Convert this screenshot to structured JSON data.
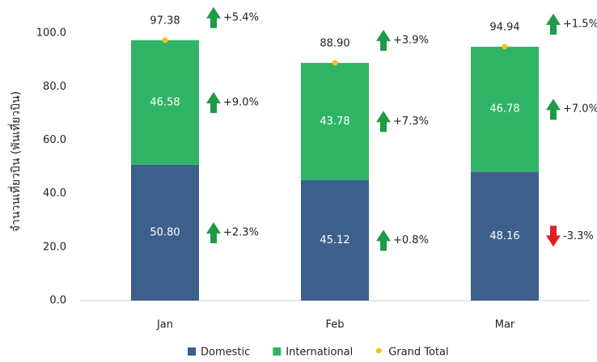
{
  "chart_data": {
    "type": "stacked-bar",
    "y_label": "จำนวนเที่ยวบิน (พันเที่ยวบิน)",
    "categories": [
      "Jan",
      "Feb",
      "Mar"
    ],
    "series": [
      {
        "name": "Domestic",
        "color": "#3d5f8b",
        "values": [
          50.8,
          45.12,
          48.16
        ],
        "value_labels": [
          "50.80",
          "45.12",
          "48.16"
        ],
        "change_labels": [
          "+2.3%",
          "+0.8%",
          "-3.3%"
        ]
      },
      {
        "name": "International",
        "color": "#2fb466",
        "values": [
          46.58,
          43.78,
          46.78
        ],
        "value_labels": [
          "46.58",
          "43.78",
          "46.78"
        ],
        "change_labels": [
          "+9.0%",
          "+7.3%",
          "+7.0%"
        ]
      }
    ],
    "total": {
      "name": "Grand Total",
      "color": "#f2c418",
      "values": [
        97.38,
        88.9,
        94.94
      ],
      "value_labels": [
        "97.38",
        "88.90",
        "94.94"
      ],
      "change_labels": [
        "+5.4%",
        "+3.9%",
        "+1.5%"
      ]
    },
    "arrow_colors": {
      "up": "#1e9a48",
      "down": "#e02020"
    },
    "ylim": [
      0,
      110
    ],
    "yticks": [
      {
        "value": 0,
        "label": "0.0"
      },
      {
        "value": 20,
        "label": "20.0"
      },
      {
        "value": 40,
        "label": "40.0"
      },
      {
        "value": 60,
        "label": "60.0"
      },
      {
        "value": 80,
        "label": "80.0"
      },
      {
        "value": 100,
        "label": "100.0"
      }
    ]
  }
}
